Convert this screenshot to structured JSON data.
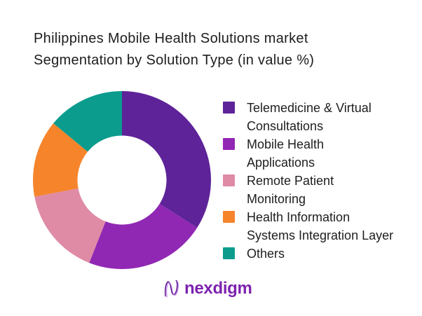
{
  "title": {
    "line1": "Philippines Mobile Health Solutions market",
    "line2": "Segmentation by Solution Type (in value %)"
  },
  "chart_data": {
    "type": "pie",
    "subtype": "donut",
    "title": "Philippines Mobile Health Solutions market Segmentation by Solution Type (in value %)",
    "unit": "value %",
    "start_angle_deg": 0,
    "direction": "clockwise",
    "inner_radius_ratio": 0.5,
    "legend_position": "right",
    "data_labels_shown": false,
    "segments": [
      {
        "label": "Telemedicine & Virtual Consultations",
        "value": 34,
        "color": "#5E2399"
      },
      {
        "label": "Mobile Health Applications",
        "value": 22,
        "color": "#9128B4"
      },
      {
        "label": "Remote Patient Monitoring",
        "value": 16,
        "color": "#DF8BA5"
      },
      {
        "label": "Health Information Systems Integration Layer",
        "value": 14,
        "color": "#F6842B"
      },
      {
        "label": "Others",
        "value": 14,
        "color": "#0B9C8E"
      }
    ]
  },
  "legend": {
    "items": [
      {
        "line1": "Telemedicine & Virtual",
        "line2": "Consultations"
      },
      {
        "line1": "Mobile Health",
        "line2": "Applications"
      },
      {
        "line1": "Remote Patient",
        "line2": "Monitoring"
      },
      {
        "line1": "Health Information",
        "line2": "Systems Integration Layer"
      },
      {
        "line1": "Others",
        "line2": ""
      }
    ]
  },
  "logo": {
    "text": "nexdigm",
    "color": "#7D22AE",
    "icon": "nexdigm-n-wave-icon"
  }
}
